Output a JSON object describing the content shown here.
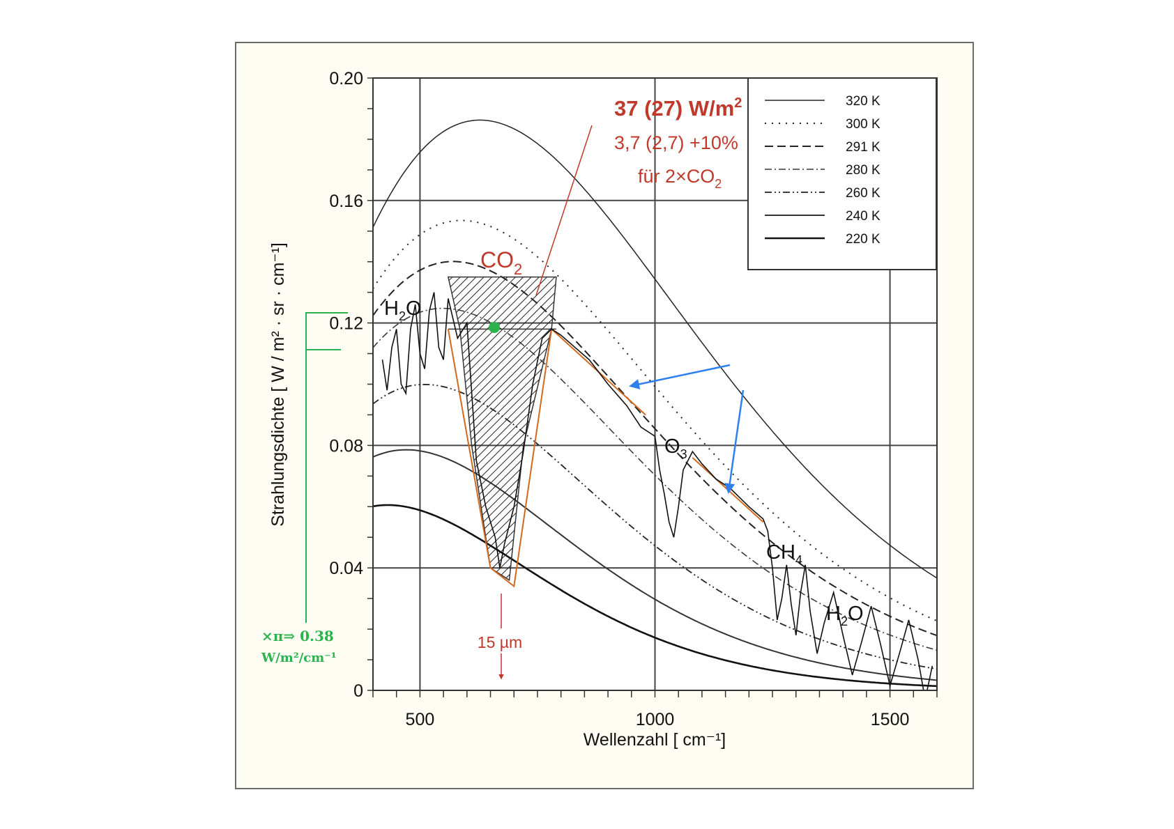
{
  "chart_data": {
    "type": "line",
    "title": "",
    "xlabel": "Wellenzahl  [ cm⁻¹]",
    "ylabel": "Strahlungsdichte  [ W / m² · sr · cm⁻¹]",
    "xlim": [
      400,
      1600
    ],
    "ylim": [
      0,
      0.2
    ],
    "x_ticks": [
      500,
      1000,
      1500
    ],
    "y_ticks": [
      0,
      0.04,
      0.08,
      0.12,
      0.16,
      0.2
    ],
    "y_tick_labels": [
      "0",
      "0.04",
      "0.08",
      "0.12",
      "0.16",
      "0.20"
    ],
    "grid": true,
    "legend_position": "top-right",
    "series": [
      {
        "name": "320 K",
        "temperature": 320,
        "style": "solid-thin"
      },
      {
        "name": "300 K",
        "temperature": 300,
        "style": "dotted"
      },
      {
        "name": "291 K",
        "temperature": 291,
        "style": "dashed"
      },
      {
        "name": "280 K",
        "temperature": 280,
        "style": "dash-dot"
      },
      {
        "name": "260 K",
        "temperature": 260,
        "style": "dash-dot-dot"
      },
      {
        "name": "240 K",
        "temperature": 240,
        "style": "solid-gray"
      },
      {
        "name": "220 K",
        "temperature": 220,
        "style": "solid-thick"
      }
    ],
    "measured_spectrum": {
      "x": [
        420,
        440,
        460,
        480,
        500,
        520,
        540,
        560,
        580,
        600,
        620,
        640,
        660,
        670,
        680,
        700,
        720,
        740,
        760,
        780,
        800,
        830,
        860,
        900,
        940,
        970,
        1000,
        1010,
        1020,
        1030,
        1040,
        1050,
        1060,
        1080,
        1100,
        1130,
        1160,
        1200,
        1230,
        1240,
        1250,
        1270,
        1290,
        1310,
        1330,
        1360,
        1400,
        1440,
        1480,
        1520,
        1560,
        1590
      ],
      "y": [
        0.108,
        0.112,
        0.1,
        0.118,
        0.11,
        0.124,
        0.112,
        0.128,
        0.115,
        0.12,
        0.075,
        0.06,
        0.05,
        0.04,
        0.048,
        0.06,
        0.078,
        0.1,
        0.115,
        0.118,
        0.116,
        0.112,
        0.108,
        0.1,
        0.093,
        0.086,
        0.083,
        0.072,
        0.064,
        0.055,
        0.05,
        0.06,
        0.072,
        0.078,
        0.074,
        0.069,
        0.066,
        0.06,
        0.056,
        0.052,
        0.04,
        0.03,
        0.028,
        0.032,
        0.026,
        0.022,
        0.018,
        0.016,
        0.015,
        0.012,
        0.01,
        0.008
      ]
    },
    "annotations": {
      "co2_label": "CO",
      "co2_sub": "2",
      "h2o_left_label": "H",
      "h2o_left_sub": "2",
      "h2o_left_tail": "O",
      "o3_label": "O",
      "o3_sub": "3",
      "ch4_label": "CH",
      "ch4_sub": "4",
      "h2o_right_label": "H",
      "h2o_right_sub": "2",
      "h2o_right_tail": "O",
      "forcing_main": "37 (27) W/m",
      "forcing_main_sup": "2",
      "forcing_delta": "3,7 (2,7)  +10%",
      "forcing_double": "für  2×CO",
      "forcing_double_sub": "2",
      "wavelength_label": "15 µm",
      "green_line1": "×π⇒ 0.38",
      "green_line2": "W/m²/cm⁻¹"
    },
    "colors": {
      "annotation_red": "#c0392b",
      "annotation_green": "#2bb24c",
      "arrow_blue": "#2f80ed",
      "envelope_orange": "#d2691e"
    }
  }
}
